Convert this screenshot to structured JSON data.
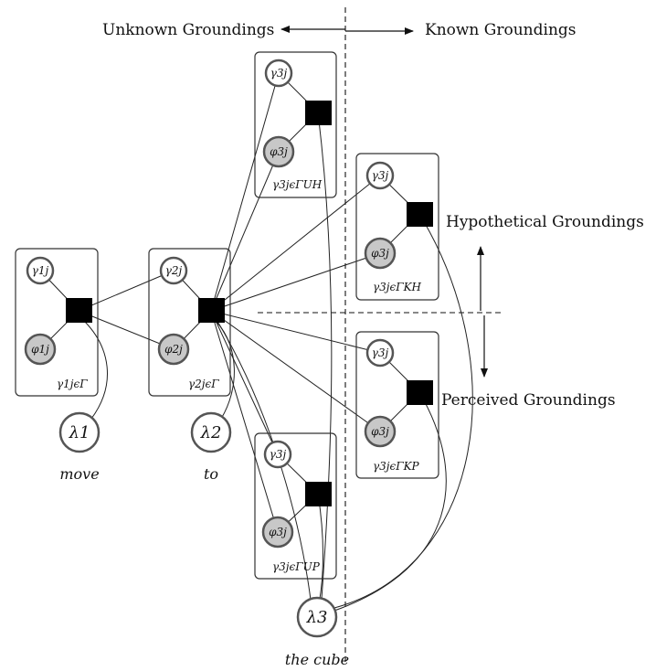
{
  "headers": {
    "unknown": "Unknown Groundings",
    "known": "Known Groundings"
  },
  "side_labels": {
    "hypothetical": "Hypothetical Groundings",
    "perceived": "Perceived Groundings"
  },
  "groups": [
    {
      "id": "g1",
      "gamma": "γ1j",
      "phi": "φ1j",
      "plate": "γ1jϵΓ",
      "lambda": "λ1",
      "word": "move"
    },
    {
      "id": "g2",
      "gamma": "γ2j",
      "phi": "φ2j",
      "plate": "γ2jϵΓ",
      "lambda": "λ2",
      "word": "to"
    },
    {
      "id": "uh",
      "gamma": "γ3j",
      "phi": "φ3j",
      "plate": "γ3jϵΓUH"
    },
    {
      "id": "up",
      "gamma": "γ3j",
      "phi": "φ3j",
      "plate": "γ3jϵΓUP"
    },
    {
      "id": "kh",
      "gamma": "γ3j",
      "phi": "φ3j",
      "plate": "γ3jϵΓKH"
    },
    {
      "id": "kp",
      "gamma": "γ3j",
      "phi": "φ3j",
      "plate": "γ3jϵΓKP"
    }
  ],
  "lambda3": {
    "symbol": "λ3",
    "word": "the cube"
  },
  "colors": {
    "observed_node": "#c8c8c8",
    "factor": "#000000",
    "node_stroke": "#555555"
  }
}
